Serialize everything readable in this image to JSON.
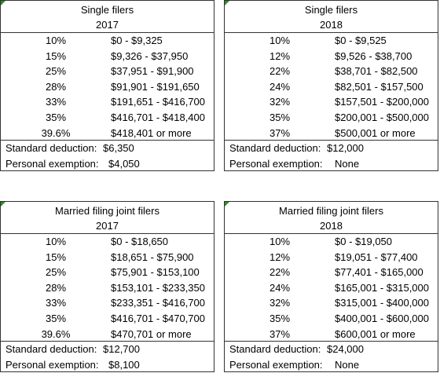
{
  "tables": [
    {
      "title": "Single filers",
      "year": "2017",
      "rows": [
        [
          "10%",
          "$0 - $9,325"
        ],
        [
          "15%",
          "$9,326 - $37,950"
        ],
        [
          "25%",
          "$37,951 - $91,900"
        ],
        [
          "28%",
          "$91,901 - $191,650"
        ],
        [
          "33%",
          "$191,651 - $416,700"
        ],
        [
          "35%",
          "$416,701 - $418,400"
        ],
        [
          "39.6%",
          "$418,401 or more"
        ]
      ],
      "standard_deduction": {
        "label": "Standard deduction:",
        "value": "$6,350"
      },
      "personal_exemption": {
        "label": "Personal exemption:",
        "value": "$4,050"
      }
    },
    {
      "title": "Single filers",
      "year": "2018",
      "rows": [
        [
          "10%",
          "$0 - $9,525"
        ],
        [
          "12%",
          "$9,526 - $38,700"
        ],
        [
          "22%",
          "$38,701 - $82,500"
        ],
        [
          "24%",
          "$82,501 - $157,500"
        ],
        [
          "32%",
          "$157,501 - $200,000"
        ],
        [
          "35%",
          "$200,001 - $500,000"
        ],
        [
          "37%",
          "$500,001 or more"
        ]
      ],
      "standard_deduction": {
        "label": "Standard deduction:",
        "value": "$12,000"
      },
      "personal_exemption": {
        "label": "Personal exemption:",
        "value": "None"
      }
    },
    {
      "title": "Married filing joint filers",
      "year": "2017",
      "rows": [
        [
          "10%",
          "$0 - $18,650"
        ],
        [
          "15%",
          "$18,651 - $75,900"
        ],
        [
          "25%",
          "$75,901 - $153,100"
        ],
        [
          "28%",
          "$153,101 - $233,350"
        ],
        [
          "33%",
          "$233,351 - $416,700"
        ],
        [
          "35%",
          "$416,701 - $470,700"
        ],
        [
          "39.6%",
          "$470,701 or more"
        ]
      ],
      "standard_deduction": {
        "label": "Standard deduction:",
        "value": "$12,700"
      },
      "personal_exemption": {
        "label": "Personal exemption:",
        "value": "$8,100"
      }
    },
    {
      "title": "Married filing joint filers",
      "year": "2018",
      "rows": [
        [
          "10%",
          "$0 - $19,050"
        ],
        [
          "12%",
          "$19,051 - $77,400"
        ],
        [
          "22%",
          "$77,401 - $165,000"
        ],
        [
          "24%",
          "$165,001 - $315,000"
        ],
        [
          "32%",
          "$315,001 - $400,000"
        ],
        [
          "35%",
          "$400,001 - $600,000"
        ],
        [
          "37%",
          "$600,001 or more"
        ]
      ],
      "standard_deduction": {
        "label": "Standard deduction:",
        "value": "$24,000"
      },
      "personal_exemption": {
        "label": "Personal exemption:",
        "value": "None"
      }
    }
  ]
}
